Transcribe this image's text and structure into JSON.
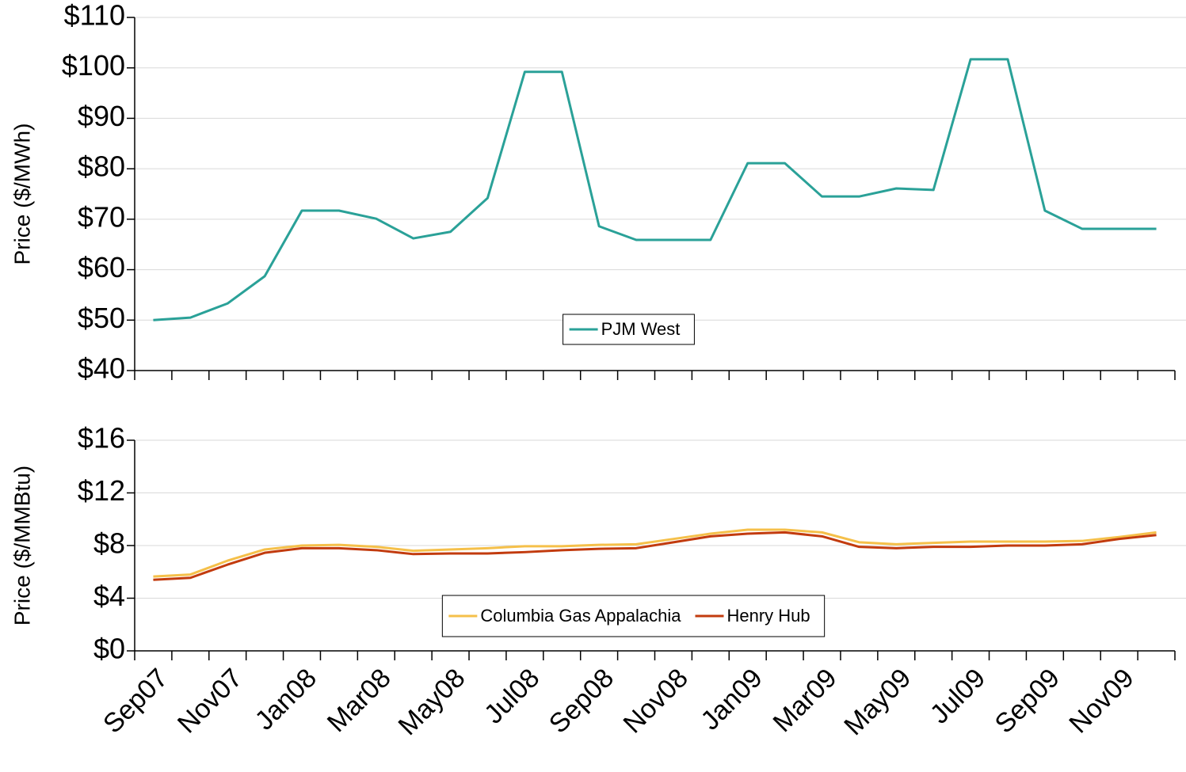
{
  "chart_data": [
    {
      "type": "line",
      "ylabel": "Price ($/MWh)",
      "series": [
        {
          "name": "PJM West",
          "color": "#2aa198",
          "values": [
            50,
            50.5,
            53.3,
            58.7,
            71.7,
            71.7,
            70.1,
            66.2,
            67.5,
            74.2,
            99.2,
            99.2,
            68.6,
            65.9,
            65.9,
            65.9,
            81.1,
            81.1,
            74.5,
            74.5,
            76.1,
            75.8,
            101.7,
            101.7,
            71.7,
            68.1,
            68.1,
            68.1
          ]
        }
      ],
      "ylim": [
        40,
        110
      ],
      "yticks": [
        {
          "value": 40,
          "label": "$40"
        },
        {
          "value": 50,
          "label": "$50"
        },
        {
          "value": 60,
          "label": "$60"
        },
        {
          "value": 70,
          "label": "$70"
        },
        {
          "value": 80,
          "label": "$80"
        },
        {
          "value": 90,
          "label": "$90"
        },
        {
          "value": 100,
          "label": "$100"
        },
        {
          "value": 110,
          "label": "$110"
        }
      ],
      "grid": true,
      "legend": "lower center"
    },
    {
      "type": "line",
      "ylabel": "Price ($/MMBtu)",
      "categories": [
        "Sep07",
        null,
        "Nov07",
        null,
        "Jan08",
        null,
        "Mar08",
        null,
        "May08",
        null,
        "Jul08",
        null,
        "Sep08",
        null,
        "Nov08",
        null,
        "Jan09",
        null,
        "Mar09",
        null,
        "May09",
        null,
        "Jul09",
        null,
        "Sep09",
        null,
        "Nov09",
        null
      ],
      "series": [
        {
          "name": "Columbia Gas Appalachia",
          "color": "#f5c04a",
          "values": [
            5.65,
            5.8,
            6.85,
            7.7,
            8.0,
            8.05,
            7.9,
            7.6,
            7.7,
            7.8,
            7.95,
            7.95,
            8.05,
            8.1,
            8.5,
            8.9,
            9.2,
            9.2,
            9.0,
            8.25,
            8.1,
            8.2,
            8.3,
            8.3,
            8.3,
            8.35,
            8.65,
            9.0
          ]
        },
        {
          "name": "Henry Hub",
          "color": "#c23b0e",
          "values": [
            5.4,
            5.55,
            6.55,
            7.45,
            7.8,
            7.8,
            7.65,
            7.35,
            7.4,
            7.4,
            7.5,
            7.65,
            7.75,
            7.8,
            8.25,
            8.7,
            8.9,
            9.0,
            8.7,
            7.9,
            7.8,
            7.9,
            7.9,
            8.0,
            8.0,
            8.1,
            8.5,
            8.8
          ]
        }
      ],
      "ylim": [
        0,
        16
      ],
      "yticks": [
        {
          "value": 0,
          "label": "$0"
        },
        {
          "value": 4,
          "label": "$4"
        },
        {
          "value": 8,
          "label": "$8"
        },
        {
          "value": 12,
          "label": "$12"
        },
        {
          "value": 16,
          "label": "$16"
        }
      ],
      "grid": true,
      "legend": "lower center"
    }
  ]
}
